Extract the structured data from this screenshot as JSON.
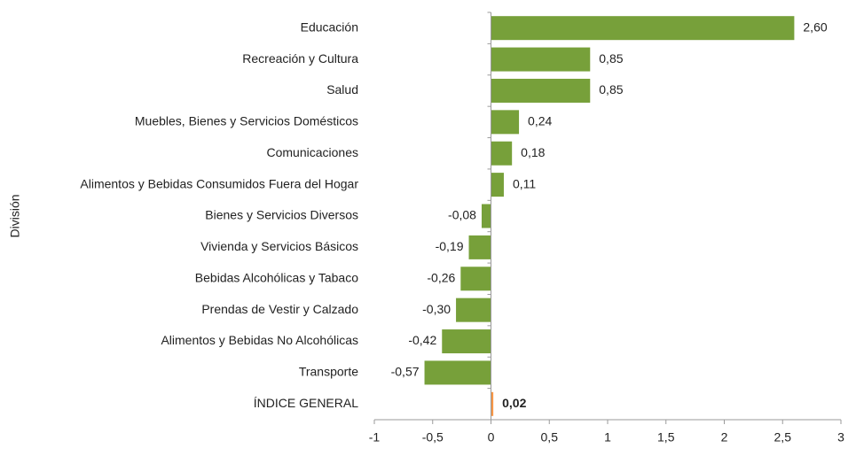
{
  "chart_data": {
    "type": "hbar",
    "y_axis_label": "División",
    "categories": [
      "Educación",
      "Recreación y Cultura",
      "Salud",
      "Muebles, Bienes y Servicios Domésticos",
      "Comunicaciones",
      "Alimentos y Bebidas Consumidos Fuera del Hogar",
      "Bienes y Servicios Diversos",
      "Vivienda y Servicios Básicos",
      "Bebidas Alcohólicas y Tabaco",
      "Prendas de Vestir y Calzado",
      "Alimentos y Bebidas No Alcohólicas",
      "Transporte",
      "ÍNDICE GENERAL"
    ],
    "values": [
      2.6,
      0.85,
      0.85,
      0.24,
      0.18,
      0.11,
      -0.08,
      -0.19,
      -0.26,
      -0.3,
      -0.42,
      -0.57,
      0.02
    ],
    "value_labels": [
      "2,60",
      "0,85",
      "0,85",
      "0,24",
      "0,18",
      "0,11",
      "-0,08",
      "-0,19",
      "-0,26",
      "-0,30",
      "-0,42",
      "-0,57",
      "0,02"
    ],
    "colors": [
      "#77a03a",
      "#77a03a",
      "#77a03a",
      "#77a03a",
      "#77a03a",
      "#77a03a",
      "#77a03a",
      "#77a03a",
      "#77a03a",
      "#77a03a",
      "#77a03a",
      "#77a03a",
      "#f79646"
    ],
    "xlim": [
      -1,
      3
    ],
    "xticks": [
      -1,
      {
        "value": -0.5,
        "label": "-0,5"
      },
      0,
      {
        "value": 0.5,
        "label": "0,5"
      },
      1,
      {
        "value": 1.5,
        "label": "1,5"
      },
      2,
      {
        "value": 2.5,
        "label": "2,5"
      },
      3
    ]
  }
}
